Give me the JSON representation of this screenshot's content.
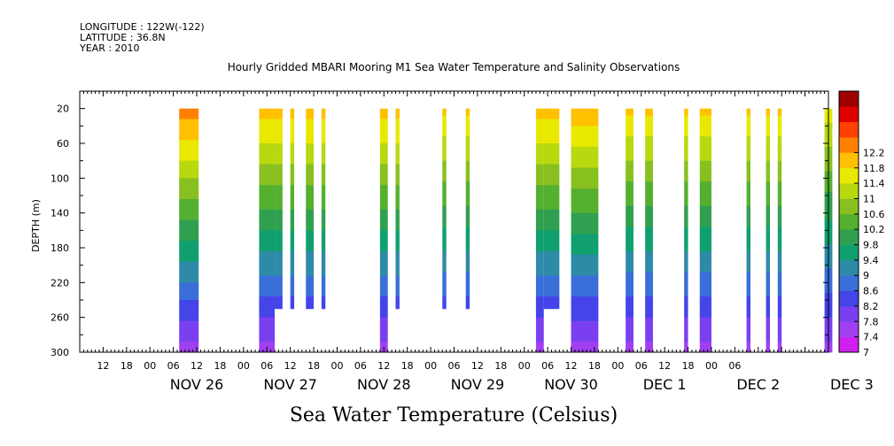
{
  "header": {
    "longitude": "LONGITUDE : 122W(-122)",
    "latitude": "LATITUDE : 36.8N",
    "year": "YEAR : 2010"
  },
  "chart_data": {
    "type": "heatmap",
    "title": "Hourly Gridded MBARI Mooring M1 Sea Water Temperature and Salinity Observations",
    "xlabel": "Sea Water Temperature (Celsius)",
    "ylabel": "DEPTH (m)",
    "x_unit": "hours since NOV 26 00:00",
    "xlim": [
      -18,
      174
    ],
    "ylim": [
      300,
      0
    ],
    "y_ticks": [
      20,
      60,
      100,
      140,
      180,
      220,
      260,
      300
    ],
    "x_hour_ticks": [
      "12",
      "18",
      "00",
      "06",
      "12",
      "18",
      "00",
      "06",
      "12",
      "18",
      "00",
      "06",
      "12",
      "18",
      "00",
      "06",
      "12",
      "18",
      "00",
      "06",
      "12",
      "18",
      "00",
      "06",
      "12",
      "18",
      "00",
      "06"
    ],
    "x_hour_tick_values": [
      -12,
      -6,
      0,
      6,
      12,
      18,
      24,
      30,
      36,
      42,
      48,
      54,
      60,
      66,
      72,
      78,
      84,
      90,
      96,
      102,
      108,
      114,
      120,
      126,
      132,
      138,
      144,
      150
    ],
    "x_date_labels": [
      "NOV 26",
      "NOV 27",
      "NOV 28",
      "NOV 29",
      "NOV 30",
      "DEC  1",
      "DEC  2",
      "DEC  3"
    ],
    "colorbar": {
      "levels": [
        7,
        7.4,
        7.8,
        8.2,
        8.6,
        9,
        9.4,
        9.8,
        10.2,
        10.6,
        11,
        11.4,
        11.8,
        12.2
      ],
      "colors": [
        "#d020f0",
        "#a040f0",
        "#7a40f0",
        "#4444e8",
        "#3a6ed8",
        "#2e8ba8",
        "#10a070",
        "#30a050",
        "#55b030",
        "#88c020",
        "#b8d810",
        "#e8e800",
        "#ffc000",
        "#ff8000",
        "#ff4000",
        "#e00000",
        "#a00000"
      ]
    },
    "segments": [
      {
        "x0": 7.5,
        "x1": 12.5,
        "depth_max": 300,
        "surface": 12.0
      },
      {
        "x0": 28,
        "x1": 32,
        "depth_max": 300,
        "surface": 11.6
      },
      {
        "x0": 32,
        "x1": 34,
        "depth_max": 250,
        "surface": 11.6
      },
      {
        "x0": 36,
        "x1": 37,
        "depth_max": 250,
        "surface": 11.6
      },
      {
        "x0": 40,
        "x1": 42,
        "depth_max": 250,
        "surface": 11.6
      },
      {
        "x0": 44,
        "x1": 45,
        "depth_max": 250,
        "surface": 11.6
      },
      {
        "x0": 59,
        "x1": 61,
        "depth_max": 300,
        "surface": 11.6
      },
      {
        "x0": 63,
        "x1": 64,
        "depth_max": 250,
        "surface": 11.6
      },
      {
        "x0": 75,
        "x1": 76,
        "depth_max": 250,
        "surface": 11.5
      },
      {
        "x0": 81,
        "x1": 82,
        "depth_max": 250,
        "surface": 11.5
      },
      {
        "x0": 99,
        "x1": 101,
        "depth_max": 300,
        "surface": 11.6
      },
      {
        "x0": 101,
        "x1": 105,
        "depth_max": 250,
        "surface": 11.6
      },
      {
        "x0": 108,
        "x1": 115,
        "depth_max": 300,
        "surface": 11.7
      },
      {
        "x0": 122,
        "x1": 124,
        "depth_max": 300,
        "surface": 11.5
      },
      {
        "x0": 127,
        "x1": 129,
        "depth_max": 300,
        "surface": 11.5
      },
      {
        "x0": 137,
        "x1": 138,
        "depth_max": 300,
        "surface": 11.5
      },
      {
        "x0": 141,
        "x1": 144,
        "depth_max": 300,
        "surface": 11.5
      },
      {
        "x0": 153,
        "x1": 154,
        "depth_max": 300,
        "surface": 11.5
      },
      {
        "x0": 158,
        "x1": 159,
        "depth_max": 300,
        "surface": 11.5
      },
      {
        "x0": 161,
        "x1": 162,
        "depth_max": 300,
        "surface": 11.5
      },
      {
        "x0": 173,
        "x1": 175,
        "depth_max": 300,
        "surface": 11.2
      }
    ]
  }
}
